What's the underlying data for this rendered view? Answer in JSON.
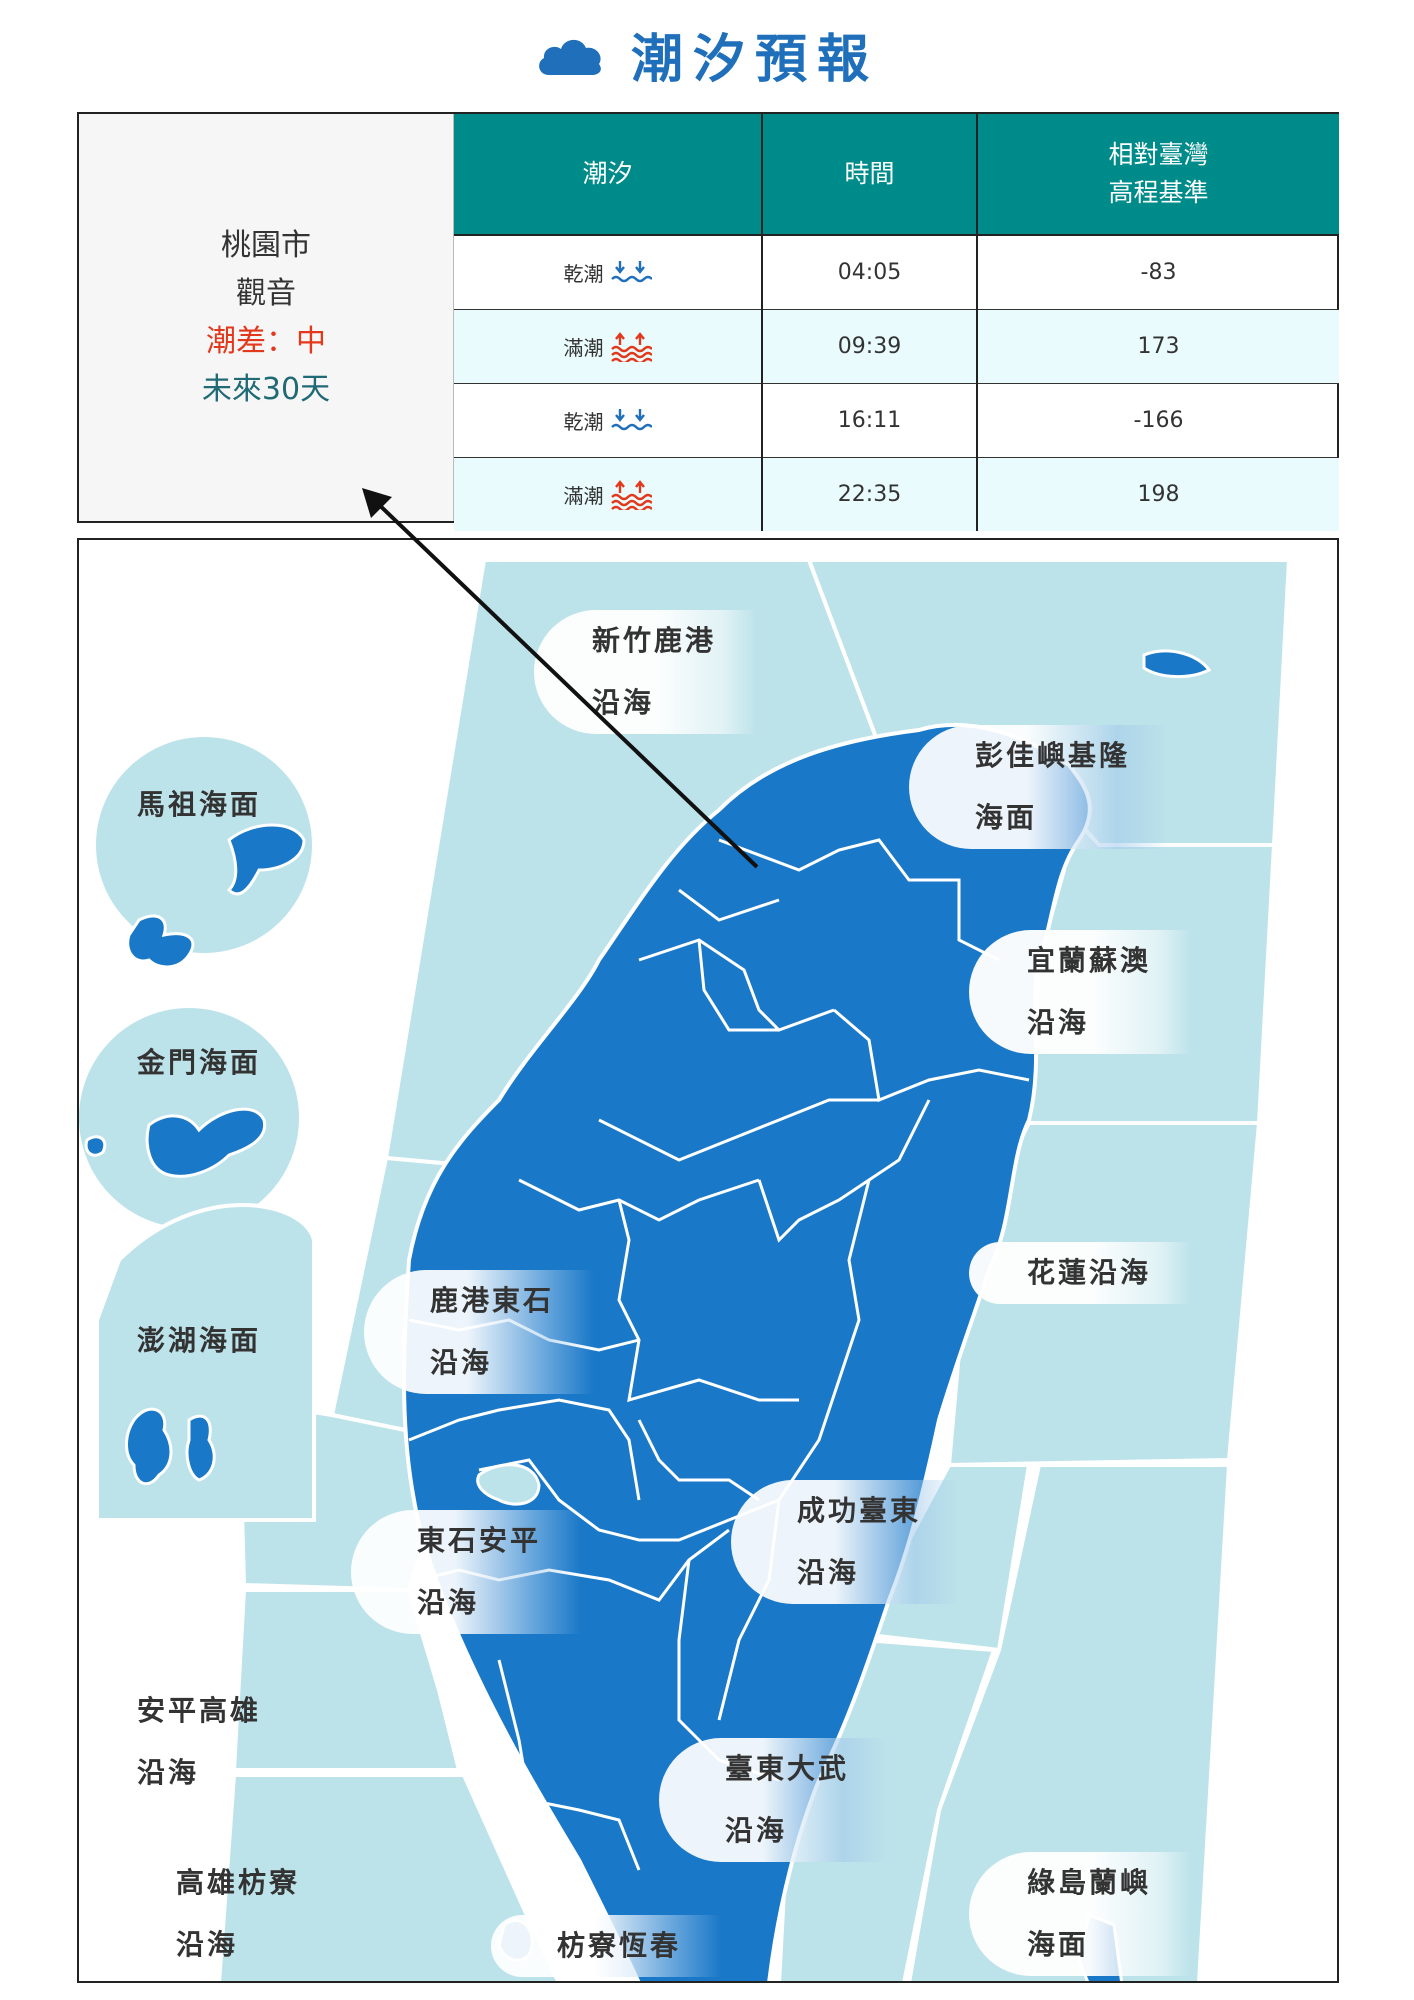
{
  "header": {
    "title": "潮汐預報",
    "icon": "cloud-icon"
  },
  "location": {
    "city": "桃園市",
    "station": "觀音",
    "tide_range": "潮差：中",
    "period": "未來30天"
  },
  "table": {
    "headers": [
      "潮汐",
      "時間",
      "相對臺灣\n高程基準"
    ],
    "rows": [
      {
        "tide": "乾潮",
        "type": "low",
        "time": "04:05",
        "height": "-83"
      },
      {
        "tide": "滿潮",
        "type": "high",
        "time": "09:39",
        "height": "173"
      },
      {
        "tide": "乾潮",
        "type": "low",
        "time": "16:11",
        "height": "-166"
      },
      {
        "tide": "滿潮",
        "type": "high",
        "time": "22:35",
        "height": "198"
      }
    ]
  },
  "map": {
    "areas": [
      {
        "id": "hsinchu-lukang",
        "line1": "新竹鹿港",
        "line2": "沿海"
      },
      {
        "id": "pengjia-keelung",
        "line1": "彭佳嶼基隆",
        "line2": "海面"
      },
      {
        "id": "matsu",
        "line1": "馬祖海面"
      },
      {
        "id": "yilan-suao",
        "line1": "宜蘭蘇澳",
        "line2": "沿海"
      },
      {
        "id": "kinmen",
        "line1": "金門海面"
      },
      {
        "id": "hualien",
        "line1": "花蓮沿海"
      },
      {
        "id": "lukang-dongshi",
        "line1": "鹿港東石",
        "line2": "沿海"
      },
      {
        "id": "penghu",
        "line1": "澎湖海面"
      },
      {
        "id": "chenggong-taitung",
        "line1": "成功臺東",
        "line2": "沿海"
      },
      {
        "id": "dongshi-anping",
        "line1": "東石安平",
        "line2": "沿海"
      },
      {
        "id": "anping-kaohsiung",
        "line1": "安平高雄",
        "line2": "沿海"
      },
      {
        "id": "taitung-dawu",
        "line1": "臺東大武",
        "line2": "沿海"
      },
      {
        "id": "kaohsiung-fangliao",
        "line1": "高雄枋寮",
        "line2": "沿海"
      },
      {
        "id": "fangliao-hengchun",
        "line1": "枋寮恆春"
      },
      {
        "id": "ludao-lanyu",
        "line1": "綠島蘭嶼",
        "line2": "海面"
      }
    ]
  },
  "colors": {
    "accent": "#1f6fba",
    "header_bg": "#008b8b",
    "range": "#e2381b",
    "period": "#1f6a74",
    "land": "#1a78c8",
    "sea": "#bde3ea"
  }
}
